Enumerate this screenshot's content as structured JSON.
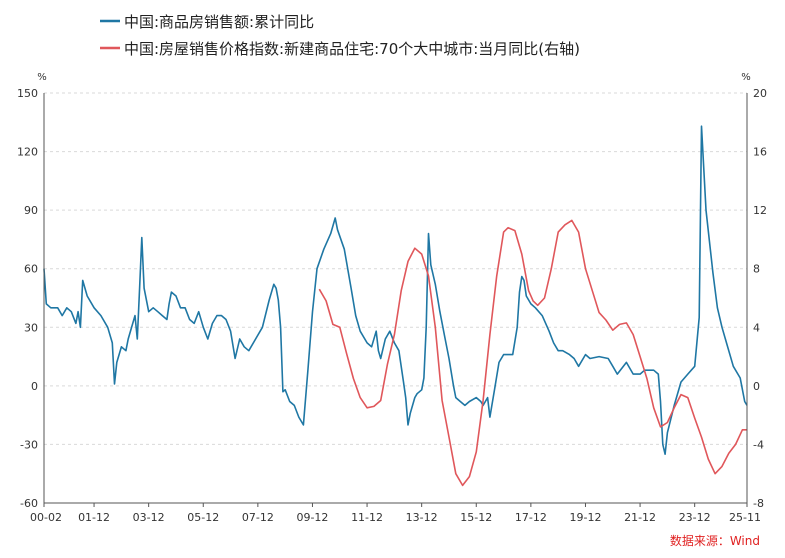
{
  "chart_data": {
    "type": "line",
    "legend": [
      {
        "name": "中国:商品房销售额:累计同比",
        "color": "#1f77a4"
      },
      {
        "name": "中国:房屋销售价格指数:新建商品住宅:70个大中城市:当月同比(右轴)",
        "color": "#e0575b"
      }
    ],
    "legend_position": "top-left",
    "left_axis": {
      "unit": "%",
      "ticks": [
        "150",
        "120",
        "90",
        "60",
        "30",
        "0",
        "-30",
        "-60"
      ],
      "range": [
        -60,
        150
      ]
    },
    "right_axis": {
      "unit": "%",
      "ticks": [
        "20",
        "16",
        "12",
        "8",
        "4",
        "0",
        "-4",
        "-8"
      ],
      "range": [
        -8,
        20
      ]
    },
    "x_ticks": [
      "00-02",
      "01-12",
      "03-12",
      "05-12",
      "07-12",
      "09-12",
      "11-12",
      "13-12",
      "15-12",
      "17-12",
      "19-12",
      "21-12",
      "23-12",
      "25-11"
    ],
    "x_range": [
      "2000-02",
      "2025-11"
    ],
    "grid": "horizontal-dashed",
    "source": "数据来源：Wind",
    "series": [
      {
        "name": "中国:商品房销售额:累计同比",
        "axis": "left",
        "color": "#1f77a4",
        "points": [
          [
            "2000-02",
            60
          ],
          [
            "2000-03",
            42
          ],
          [
            "2000-05",
            40
          ],
          [
            "2000-08",
            40
          ],
          [
            "2000-10",
            36
          ],
          [
            "2000-12",
            40
          ],
          [
            "2001-02",
            38
          ],
          [
            "2001-04",
            32
          ],
          [
            "2001-05",
            38
          ],
          [
            "2001-06",
            30
          ],
          [
            "2001-07",
            54
          ],
          [
            "2001-09",
            46
          ],
          [
            "2001-12",
            40
          ],
          [
            "2002-03",
            36
          ],
          [
            "2002-06",
            30
          ],
          [
            "2002-08",
            22
          ],
          [
            "2002-09",
            1
          ],
          [
            "2002-10",
            12
          ],
          [
            "2002-12",
            20
          ],
          [
            "2003-02",
            18
          ],
          [
            "2003-03",
            24
          ],
          [
            "2003-06",
            36
          ],
          [
            "2003-07",
            24
          ],
          [
            "2003-08",
            50
          ],
          [
            "2003-09",
            76
          ],
          [
            "2003-10",
            50
          ],
          [
            "2003-12",
            38
          ],
          [
            "2004-02",
            40
          ],
          [
            "2004-04",
            38
          ],
          [
            "2004-06",
            36
          ],
          [
            "2004-08",
            34
          ],
          [
            "2004-09",
            42
          ],
          [
            "2004-10",
            48
          ],
          [
            "2004-12",
            46
          ],
          [
            "2005-02",
            40
          ],
          [
            "2005-04",
            40
          ],
          [
            "2005-06",
            34
          ],
          [
            "2005-08",
            32
          ],
          [
            "2005-10",
            38
          ],
          [
            "2005-12",
            30
          ],
          [
            "2006-02",
            24
          ],
          [
            "2006-04",
            32
          ],
          [
            "2006-06",
            36
          ],
          [
            "2006-08",
            36
          ],
          [
            "2006-10",
            34
          ],
          [
            "2006-12",
            28
          ],
          [
            "2007-02",
            14
          ],
          [
            "2007-04",
            24
          ],
          [
            "2007-06",
            20
          ],
          [
            "2007-08",
            18
          ],
          [
            "2007-11",
            24
          ],
          [
            "2008-02",
            30
          ],
          [
            "2008-05",
            44
          ],
          [
            "2008-07",
            52
          ],
          [
            "2008-08",
            50
          ],
          [
            "2008-09",
            44
          ],
          [
            "2008-10",
            30
          ],
          [
            "2008-11",
            -3
          ],
          [
            "2008-12",
            -2
          ],
          [
            "2009-02",
            -8
          ],
          [
            "2009-04",
            -10
          ],
          [
            "2009-06",
            -16
          ],
          [
            "2009-08",
            -20
          ],
          [
            "2009-10",
            8
          ],
          [
            "2009-12",
            38
          ],
          [
            "2010-02",
            60
          ],
          [
            "2010-05",
            70
          ],
          [
            "2010-08",
            78
          ],
          [
            "2010-10",
            86
          ],
          [
            "2010-11",
            80
          ],
          [
            "2011-02",
            70
          ],
          [
            "2011-05",
            50
          ],
          [
            "2011-07",
            36
          ],
          [
            "2011-09",
            28
          ],
          [
            "2011-12",
            22
          ],
          [
            "2012-02",
            20
          ],
          [
            "2012-04",
            28
          ],
          [
            "2012-05",
            18
          ],
          [
            "2012-06",
            14
          ],
          [
            "2012-08",
            24
          ],
          [
            "2012-10",
            28
          ],
          [
            "2012-12",
            22
          ],
          [
            "2013-02",
            18
          ],
          [
            "2013-04",
            2
          ],
          [
            "2013-05",
            -6
          ],
          [
            "2013-06",
            -20
          ],
          [
            "2013-07",
            -14
          ],
          [
            "2013-09",
            -6
          ],
          [
            "2013-10",
            -4
          ],
          [
            "2013-12",
            -2
          ],
          [
            "2014-01",
            4
          ],
          [
            "2014-02",
            30
          ],
          [
            "2014-03",
            78
          ],
          [
            "2014-04",
            62
          ],
          [
            "2014-06",
            52
          ],
          [
            "2014-08",
            38
          ],
          [
            "2014-10",
            26
          ],
          [
            "2014-12",
            14
          ],
          [
            "2015-02",
            0
          ],
          [
            "2015-03",
            -6
          ],
          [
            "2015-05",
            -8
          ],
          [
            "2015-07",
            -10
          ],
          [
            "2015-09",
            -8
          ],
          [
            "2015-12",
            -6
          ],
          [
            "2016-02",
            -8
          ],
          [
            "2016-03",
            -10
          ],
          [
            "2016-05",
            -6
          ],
          [
            "2016-06",
            -16
          ],
          [
            "2016-08",
            -2
          ],
          [
            "2016-10",
            12
          ],
          [
            "2016-12",
            16
          ],
          [
            "2017-02",
            16
          ],
          [
            "2017-04",
            16
          ],
          [
            "2017-06",
            30
          ],
          [
            "2017-07",
            48
          ],
          [
            "2017-08",
            56
          ],
          [
            "2017-09",
            54
          ],
          [
            "2017-10",
            46
          ],
          [
            "2017-12",
            42
          ],
          [
            "2018-02",
            40
          ],
          [
            "2018-05",
            36
          ],
          [
            "2018-08",
            28
          ],
          [
            "2018-10",
            22
          ],
          [
            "2018-12",
            18
          ],
          [
            "2019-02",
            18
          ],
          [
            "2019-05",
            16
          ],
          [
            "2019-07",
            14
          ],
          [
            "2019-09",
            10
          ],
          [
            "2019-12",
            16
          ],
          [
            "2020-02",
            14
          ],
          [
            "2020-06",
            15
          ],
          [
            "2020-10",
            14
          ],
          [
            "2020-12",
            10
          ],
          [
            "2021-02",
            6
          ],
          [
            "2021-06",
            12
          ],
          [
            "2021-09",
            6
          ],
          [
            "2021-12",
            6
          ],
          [
            "2022-02",
            8
          ],
          [
            "2022-06",
            8
          ],
          [
            "2022-08",
            6
          ],
          [
            "2022-09",
            -8
          ],
          [
            "2022-10",
            -30
          ],
          [
            "2022-11",
            -35
          ],
          [
            "2022-12",
            -24
          ],
          [
            "2023-03",
            -10
          ],
          [
            "2023-06",
            2
          ],
          [
            "2023-09",
            6
          ],
          [
            "2023-12",
            10
          ],
          [
            "2024-02",
            35
          ],
          [
            "2024-03",
            133
          ],
          [
            "2024-05",
            90
          ],
          [
            "2024-08",
            58
          ],
          [
            "2024-10",
            40
          ],
          [
            "2024-12",
            30
          ],
          [
            "2025-02",
            22
          ],
          [
            "2025-05",
            10
          ],
          [
            "2025-08",
            4
          ],
          [
            "2025-10",
            -8
          ],
          [
            "2025-11",
            -10
          ]
        ]
      },
      {
        "name": "中国:房屋销售价格指数:新建商品住宅:70个大中城市:当月同比(右轴)",
        "axis": "right",
        "color": "#e0575b",
        "points": [
          [
            "2010-03",
            6.6
          ],
          [
            "2010-06",
            5.8
          ],
          [
            "2010-09",
            4.2
          ],
          [
            "2010-12",
            4.0
          ],
          [
            "2011-03",
            2.2
          ],
          [
            "2011-06",
            0.5
          ],
          [
            "2011-09",
            -0.8
          ],
          [
            "2011-12",
            -1.5
          ],
          [
            "2012-03",
            -1.4
          ],
          [
            "2012-06",
            -1.0
          ],
          [
            "2012-09",
            1.5
          ],
          [
            "2012-12",
            3.5
          ],
          [
            "2013-03",
            6.5
          ],
          [
            "2013-06",
            8.5
          ],
          [
            "2013-09",
            9.4
          ],
          [
            "2013-12",
            9.0
          ],
          [
            "2014-03",
            7.5
          ],
          [
            "2014-06",
            4.0
          ],
          [
            "2014-09",
            -1.0
          ],
          [
            "2014-12",
            -3.5
          ],
          [
            "2015-03",
            -6.0
          ],
          [
            "2015-06",
            -6.8
          ],
          [
            "2015-09",
            -6.2
          ],
          [
            "2015-12",
            -4.5
          ],
          [
            "2016-03",
            -1.0
          ],
          [
            "2016-06",
            3.5
          ],
          [
            "2016-09",
            7.5
          ],
          [
            "2016-12",
            10.5
          ],
          [
            "2017-02",
            10.8
          ],
          [
            "2017-05",
            10.6
          ],
          [
            "2017-08",
            9.0
          ],
          [
            "2017-11",
            6.5
          ],
          [
            "2018-01",
            5.8
          ],
          [
            "2018-03",
            5.5
          ],
          [
            "2018-06",
            6.0
          ],
          [
            "2018-09",
            8.0
          ],
          [
            "2018-12",
            10.5
          ],
          [
            "2019-03",
            11.0
          ],
          [
            "2019-06",
            11.3
          ],
          [
            "2019-09",
            10.5
          ],
          [
            "2019-12",
            8.0
          ],
          [
            "2020-03",
            6.5
          ],
          [
            "2020-06",
            5.0
          ],
          [
            "2020-09",
            4.5
          ],
          [
            "2020-12",
            3.8
          ],
          [
            "2021-03",
            4.2
          ],
          [
            "2021-06",
            4.3
          ],
          [
            "2021-09",
            3.5
          ],
          [
            "2021-12",
            2.0
          ],
          [
            "2022-03",
            0.5
          ],
          [
            "2022-06",
            -1.5
          ],
          [
            "2022-09",
            -2.8
          ],
          [
            "2022-12",
            -2.5
          ],
          [
            "2023-03",
            -1.5
          ],
          [
            "2023-06",
            -0.6
          ],
          [
            "2023-09",
            -0.8
          ],
          [
            "2023-12",
            -2.2
          ],
          [
            "2024-03",
            -3.5
          ],
          [
            "2024-06",
            -5.0
          ],
          [
            "2024-09",
            -6.0
          ],
          [
            "2024-12",
            -5.5
          ],
          [
            "2025-03",
            -4.6
          ],
          [
            "2025-06",
            -4.0
          ],
          [
            "2025-09",
            -3.0
          ],
          [
            "2025-11",
            -3.0
          ]
        ]
      }
    ]
  }
}
